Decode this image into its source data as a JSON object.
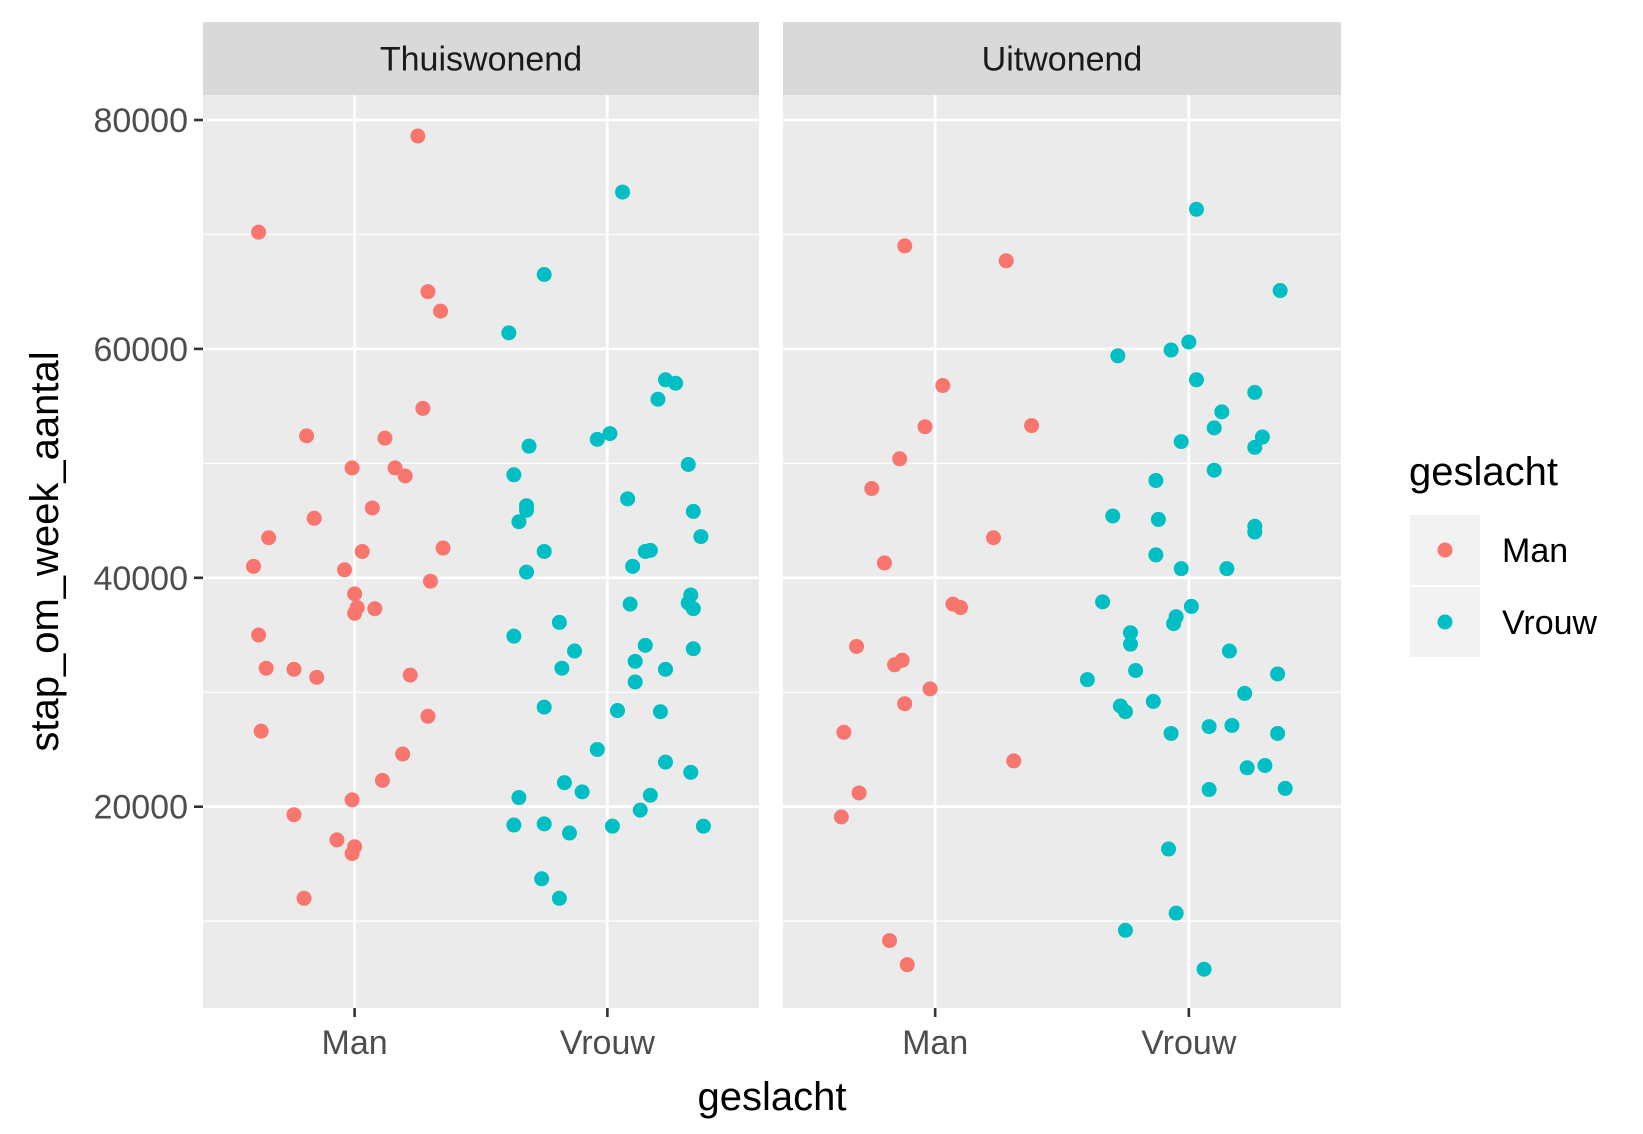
{
  "chart_data": {
    "type": "scatter",
    "xlabel": "geslacht",
    "ylabel": "stap_om_week_aantal",
    "categories": [
      "Man",
      "Vrouw"
    ],
    "yticks": [
      20000,
      40000,
      60000,
      80000
    ],
    "ylim": [
      2000,
      88000
    ],
    "grid": true,
    "legend": {
      "title": "geslacht",
      "position": "right",
      "entries": [
        {
          "label": "Man",
          "color": "#F8766D"
        },
        {
          "label": "Vrouw",
          "color": "#00BFC4"
        }
      ]
    },
    "panels": [
      {
        "title": "Thuiswonend",
        "series": [
          {
            "name": "Man",
            "color": "#F8766D",
            "points": [
              {
                "x": -0.4,
                "y": 41000
              },
              {
                "x": -0.38,
                "y": 70200
              },
              {
                "x": -0.38,
                "y": 35000
              },
              {
                "x": -0.37,
                "y": 26600
              },
              {
                "x": -0.35,
                "y": 32100
              },
              {
                "x": -0.34,
                "y": 43500
              },
              {
                "x": -0.24,
                "y": 32000
              },
              {
                "x": -0.24,
                "y": 19300
              },
              {
                "x": -0.2,
                "y": 12000
              },
              {
                "x": -0.19,
                "y": 52400
              },
              {
                "x": -0.16,
                "y": 45200
              },
              {
                "x": -0.15,
                "y": 31300
              },
              {
                "x": -0.07,
                "y": 17100
              },
              {
                "x": -0.04,
                "y": 40700
              },
              {
                "x": -0.01,
                "y": 49600
              },
              {
                "x": -0.01,
                "y": 20600
              },
              {
                "x": -0.01,
                "y": 15900
              },
              {
                "x": 0.0,
                "y": 38600
              },
              {
                "x": 0.0,
                "y": 36900
              },
              {
                "x": 0.0,
                "y": 16500
              },
              {
                "x": 0.01,
                "y": 37400
              },
              {
                "x": 0.03,
                "y": 42300
              },
              {
                "x": 0.07,
                "y": 46100
              },
              {
                "x": 0.08,
                "y": 37300
              },
              {
                "x": 0.11,
                "y": 22300
              },
              {
                "x": 0.12,
                "y": 52200
              },
              {
                "x": 0.16,
                "y": 49600
              },
              {
                "x": 0.19,
                "y": 24600
              },
              {
                "x": 0.2,
                "y": 48900
              },
              {
                "x": 0.22,
                "y": 31500
              },
              {
                "x": 0.25,
                "y": 78600
              },
              {
                "x": 0.27,
                "y": 54800
              },
              {
                "x": 0.29,
                "y": 65000
              },
              {
                "x": 0.29,
                "y": 27900
              },
              {
                "x": 0.3,
                "y": 39700
              },
              {
                "x": 0.34,
                "y": 63300
              },
              {
                "x": 0.35,
                "y": 42600
              }
            ]
          },
          {
            "name": "Vrouw",
            "color": "#00BFC4",
            "points": [
              {
                "x": -0.39,
                "y": 61400
              },
              {
                "x": -0.37,
                "y": 49000
              },
              {
                "x": -0.37,
                "y": 34900
              },
              {
                "x": -0.37,
                "y": 18400
              },
              {
                "x": -0.35,
                "y": 44900
              },
              {
                "x": -0.35,
                "y": 20800
              },
              {
                "x": -0.32,
                "y": 46300
              },
              {
                "x": -0.32,
                "y": 45900
              },
              {
                "x": -0.32,
                "y": 40500
              },
              {
                "x": -0.31,
                "y": 51500
              },
              {
                "x": -0.25,
                "y": 66500
              },
              {
                "x": -0.25,
                "y": 42300
              },
              {
                "x": -0.25,
                "y": 28700
              },
              {
                "x": -0.25,
                "y": 18500
              },
              {
                "x": -0.26,
                "y": 13700
              },
              {
                "x": -0.19,
                "y": 36100
              },
              {
                "x": -0.19,
                "y": 12000
              },
              {
                "x": -0.18,
                "y": 32100
              },
              {
                "x": -0.17,
                "y": 22100
              },
              {
                "x": -0.15,
                "y": 17700
              },
              {
                "x": -0.13,
                "y": 33600
              },
              {
                "x": -0.1,
                "y": 21300
              },
              {
                "x": -0.04,
                "y": 52100
              },
              {
                "x": -0.04,
                "y": 25000
              },
              {
                "x": 0.01,
                "y": 52600
              },
              {
                "x": 0.02,
                "y": 18300
              },
              {
                "x": 0.04,
                "y": 28400
              },
              {
                "x": 0.06,
                "y": 73700
              },
              {
                "x": 0.08,
                "y": 46900
              },
              {
                "x": 0.09,
                "y": 37700
              },
              {
                "x": 0.1,
                "y": 41000
              },
              {
                "x": 0.11,
                "y": 32700
              },
              {
                "x": 0.11,
                "y": 30900
              },
              {
                "x": 0.13,
                "y": 19700
              },
              {
                "x": 0.15,
                "y": 42300
              },
              {
                "x": 0.15,
                "y": 34100
              },
              {
                "x": 0.17,
                "y": 42400
              },
              {
                "x": 0.17,
                "y": 21000
              },
              {
                "x": 0.2,
                "y": 55600
              },
              {
                "x": 0.21,
                "y": 28300
              },
              {
                "x": 0.23,
                "y": 57300
              },
              {
                "x": 0.23,
                "y": 32000
              },
              {
                "x": 0.23,
                "y": 23900
              },
              {
                "x": 0.27,
                "y": 57000
              },
              {
                "x": 0.32,
                "y": 49900
              },
              {
                "x": 0.32,
                "y": 37800
              },
              {
                "x": 0.33,
                "y": 38500
              },
              {
                "x": 0.33,
                "y": 23000
              },
              {
                "x": 0.34,
                "y": 45800
              },
              {
                "x": 0.34,
                "y": 37300
              },
              {
                "x": 0.34,
                "y": 33800
              },
              {
                "x": 0.37,
                "y": 43600
              },
              {
                "x": 0.38,
                "y": 18300
              }
            ]
          }
        ]
      },
      {
        "title": "Uitwonend",
        "series": [
          {
            "name": "Man",
            "color": "#F8766D",
            "points": [
              {
                "x": -0.37,
                "y": 19100
              },
              {
                "x": -0.36,
                "y": 26500
              },
              {
                "x": -0.31,
                "y": 34000
              },
              {
                "x": -0.3,
                "y": 21200
              },
              {
                "x": -0.25,
                "y": 47800
              },
              {
                "x": -0.2,
                "y": 41300
              },
              {
                "x": -0.18,
                "y": 8300
              },
              {
                "x": -0.16,
                "y": 32400
              },
              {
                "x": -0.14,
                "y": 50400
              },
              {
                "x": -0.13,
                "y": 32800
              },
              {
                "x": -0.12,
                "y": 29000
              },
              {
                "x": -0.12,
                "y": 69000
              },
              {
                "x": -0.11,
                "y": 6200
              },
              {
                "x": -0.04,
                "y": 53200
              },
              {
                "x": -0.02,
                "y": 30300
              },
              {
                "x": 0.03,
                "y": 56800
              },
              {
                "x": 0.07,
                "y": 37700
              },
              {
                "x": 0.1,
                "y": 37400
              },
              {
                "x": 0.23,
                "y": 43500
              },
              {
                "x": 0.28,
                "y": 67700
              },
              {
                "x": 0.31,
                "y": 24000
              },
              {
                "x": 0.38,
                "y": 53300
              }
            ]
          },
          {
            "name": "Vrouw",
            "color": "#00BFC4",
            "points": [
              {
                "x": -0.4,
                "y": 31100
              },
              {
                "x": -0.34,
                "y": 37900
              },
              {
                "x": -0.3,
                "y": 45400
              },
              {
                "x": -0.28,
                "y": 59400
              },
              {
                "x": -0.27,
                "y": 28800
              },
              {
                "x": -0.25,
                "y": 9200
              },
              {
                "x": -0.25,
                "y": 28300
              },
              {
                "x": -0.23,
                "y": 35200
              },
              {
                "x": -0.23,
                "y": 34200
              },
              {
                "x": -0.21,
                "y": 31900
              },
              {
                "x": -0.14,
                "y": 29200
              },
              {
                "x": -0.13,
                "y": 48500
              },
              {
                "x": -0.12,
                "y": 45100
              },
              {
                "x": -0.13,
                "y": 42000
              },
              {
                "x": -0.08,
                "y": 16300
              },
              {
                "x": -0.07,
                "y": 26400
              },
              {
                "x": -0.07,
                "y": 59900
              },
              {
                "x": -0.06,
                "y": 36000
              },
              {
                "x": -0.05,
                "y": 36600
              },
              {
                "x": -0.05,
                "y": 10700
              },
              {
                "x": -0.03,
                "y": 51900
              },
              {
                "x": -0.03,
                "y": 40800
              },
              {
                "x": 0.0,
                "y": 60600
              },
              {
                "x": 0.01,
                "y": 37500
              },
              {
                "x": 0.03,
                "y": 72200
              },
              {
                "x": 0.03,
                "y": 57300
              },
              {
                "x": 0.06,
                "y": 5800
              },
              {
                "x": 0.08,
                "y": 21500
              },
              {
                "x": 0.08,
                "y": 27000
              },
              {
                "x": 0.1,
                "y": 53100
              },
              {
                "x": 0.1,
                "y": 49400
              },
              {
                "x": 0.13,
                "y": 54500
              },
              {
                "x": 0.15,
                "y": 40800
              },
              {
                "x": 0.16,
                "y": 33600
              },
              {
                "x": 0.17,
                "y": 27100
              },
              {
                "x": 0.22,
                "y": 29900
              },
              {
                "x": 0.23,
                "y": 23400
              },
              {
                "x": 0.26,
                "y": 51400
              },
              {
                "x": 0.26,
                "y": 56200
              },
              {
                "x": 0.26,
                "y": 44500
              },
              {
                "x": 0.26,
                "y": 44000
              },
              {
                "x": 0.29,
                "y": 52300
              },
              {
                "x": 0.3,
                "y": 23600
              },
              {
                "x": 0.35,
                "y": 31600
              },
              {
                "x": 0.35,
                "y": 26400
              },
              {
                "x": 0.36,
                "y": 65100
              },
              {
                "x": 0.38,
                "y": 21600
              }
            ]
          }
        ]
      }
    ]
  }
}
